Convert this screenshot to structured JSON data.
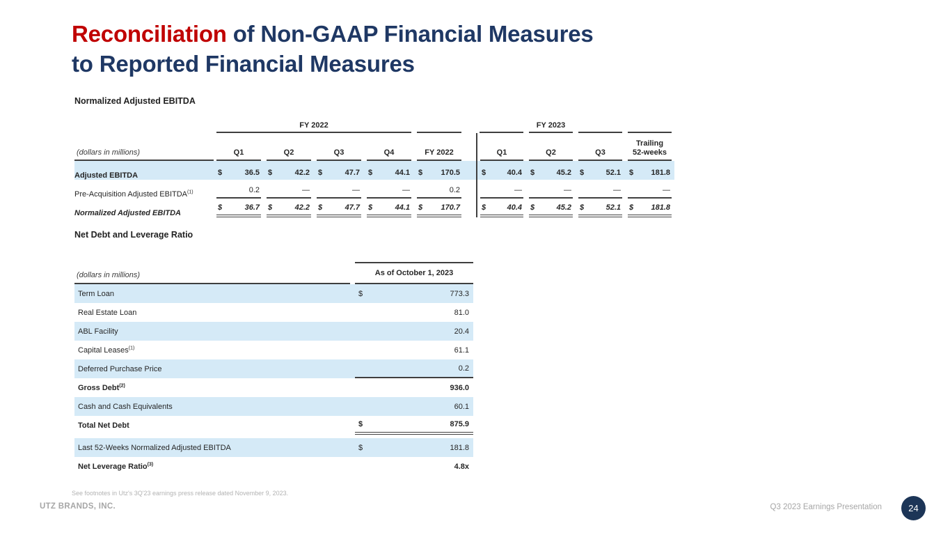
{
  "title": {
    "highlight": "Reconciliation",
    "line1_rest": " of Non-GAAP Financial Measures",
    "line2": "to Reported Financial Measures"
  },
  "colors": {
    "accent_red": "#C00000",
    "title_navy": "#1F3864",
    "table_line": "#3F3F3F",
    "row_highlight_blue": "#D5EAF7",
    "footer_gray": "#A6A6A6",
    "page_circle_navy": "#1C3557"
  },
  "currency": "$",
  "ebitda_table": {
    "heading": "Normalized Adjusted EBITDA",
    "note": "(dollars in millions)",
    "groups": [
      {
        "label": "FY 2022"
      },
      {
        "label": "FY 2023"
      }
    ],
    "columns": [
      "Q1",
      "Q2",
      "Q3",
      "Q4",
      "FY 2022",
      "Q1",
      "Q2",
      "Q3",
      "Trailing\n52-weeks"
    ],
    "rows": [
      {
        "label": "Adjusted EBITDA",
        "sup": "",
        "style": "bold blue",
        "dollar": true,
        "underline": "",
        "values": [
          "36.5",
          "42.2",
          "47.7",
          "44.1",
          "170.5",
          "40.4",
          "45.2",
          "52.1",
          "181.8"
        ]
      },
      {
        "label": "Pre-Acquisition Adjusted EBITDA",
        "sup": "(1)",
        "style": "plain",
        "dollar": false,
        "underline": "single",
        "values": [
          "0.2",
          "—",
          "—",
          "—",
          "0.2",
          "—",
          "—",
          "—",
          "—"
        ]
      },
      {
        "label": "Normalized Adjusted EBITDA",
        "sup": "",
        "style": "bold italic",
        "dollar": true,
        "underline": "double",
        "values": [
          "36.7",
          "42.2",
          "47.7",
          "44.1",
          "170.7",
          "40.4",
          "45.2",
          "52.1",
          "181.8"
        ]
      }
    ]
  },
  "net_debt_table": {
    "heading": "Net Debt and Leverage Ratio",
    "note": "(dollars in millions)",
    "column_header": "As of October 1, 2023",
    "rows": [
      {
        "label": "Term Loan",
        "sup": "",
        "dollar": "$",
        "value": "773.3",
        "bold": false,
        "blue": true,
        "underline": "",
        "gap_top": false
      },
      {
        "label": "Real Estate Loan",
        "sup": "",
        "dollar": "",
        "value": "81.0",
        "bold": false,
        "blue": false,
        "underline": "",
        "gap_top": false
      },
      {
        "label": "ABL Facility",
        "sup": "",
        "dollar": "",
        "value": "20.4",
        "bold": false,
        "blue": true,
        "underline": "",
        "gap_top": false
      },
      {
        "label": "Capital Leases",
        "sup": "(1)",
        "dollar": "",
        "value": "61.1",
        "bold": false,
        "blue": false,
        "underline": "",
        "gap_top": false
      },
      {
        "label": "Deferred Purchase Price",
        "sup": "",
        "dollar": "",
        "value": "0.2",
        "bold": false,
        "blue": true,
        "underline": "single",
        "gap_top": false
      },
      {
        "label": "Gross Debt",
        "sup": "(2)",
        "dollar": "",
        "value": "936.0",
        "bold": true,
        "blue": false,
        "underline": "",
        "gap_top": false
      },
      {
        "label": "Cash and Cash Equivalents",
        "sup": "",
        "dollar": "",
        "value": "60.1",
        "bold": false,
        "blue": true,
        "underline": "",
        "gap_top": false
      },
      {
        "label": "Total Net Debt",
        "sup": "",
        "dollar": "$",
        "value": "875.9",
        "bold": true,
        "blue": false,
        "underline": "double",
        "gap_top": false
      },
      {
        "label": "Last 52-Weeks Normalized Adjusted EBITDA",
        "sup": "",
        "dollar": "$",
        "value": "181.8",
        "bold": false,
        "blue": true,
        "underline": "",
        "gap_top": true
      },
      {
        "label": "Net Leverage Ratio",
        "sup": "(3)",
        "dollar": "",
        "value": "4.8x",
        "bold": true,
        "blue": false,
        "underline": "",
        "gap_top": false
      }
    ]
  },
  "footnote": "See footnotes in Utz's 3Q'23 earnings press release dated November 9, 2023.",
  "footer": {
    "company": "UTZ BRANDS, INC.",
    "presentation": "Q3 2023 Earnings Presentation",
    "page": "24"
  }
}
